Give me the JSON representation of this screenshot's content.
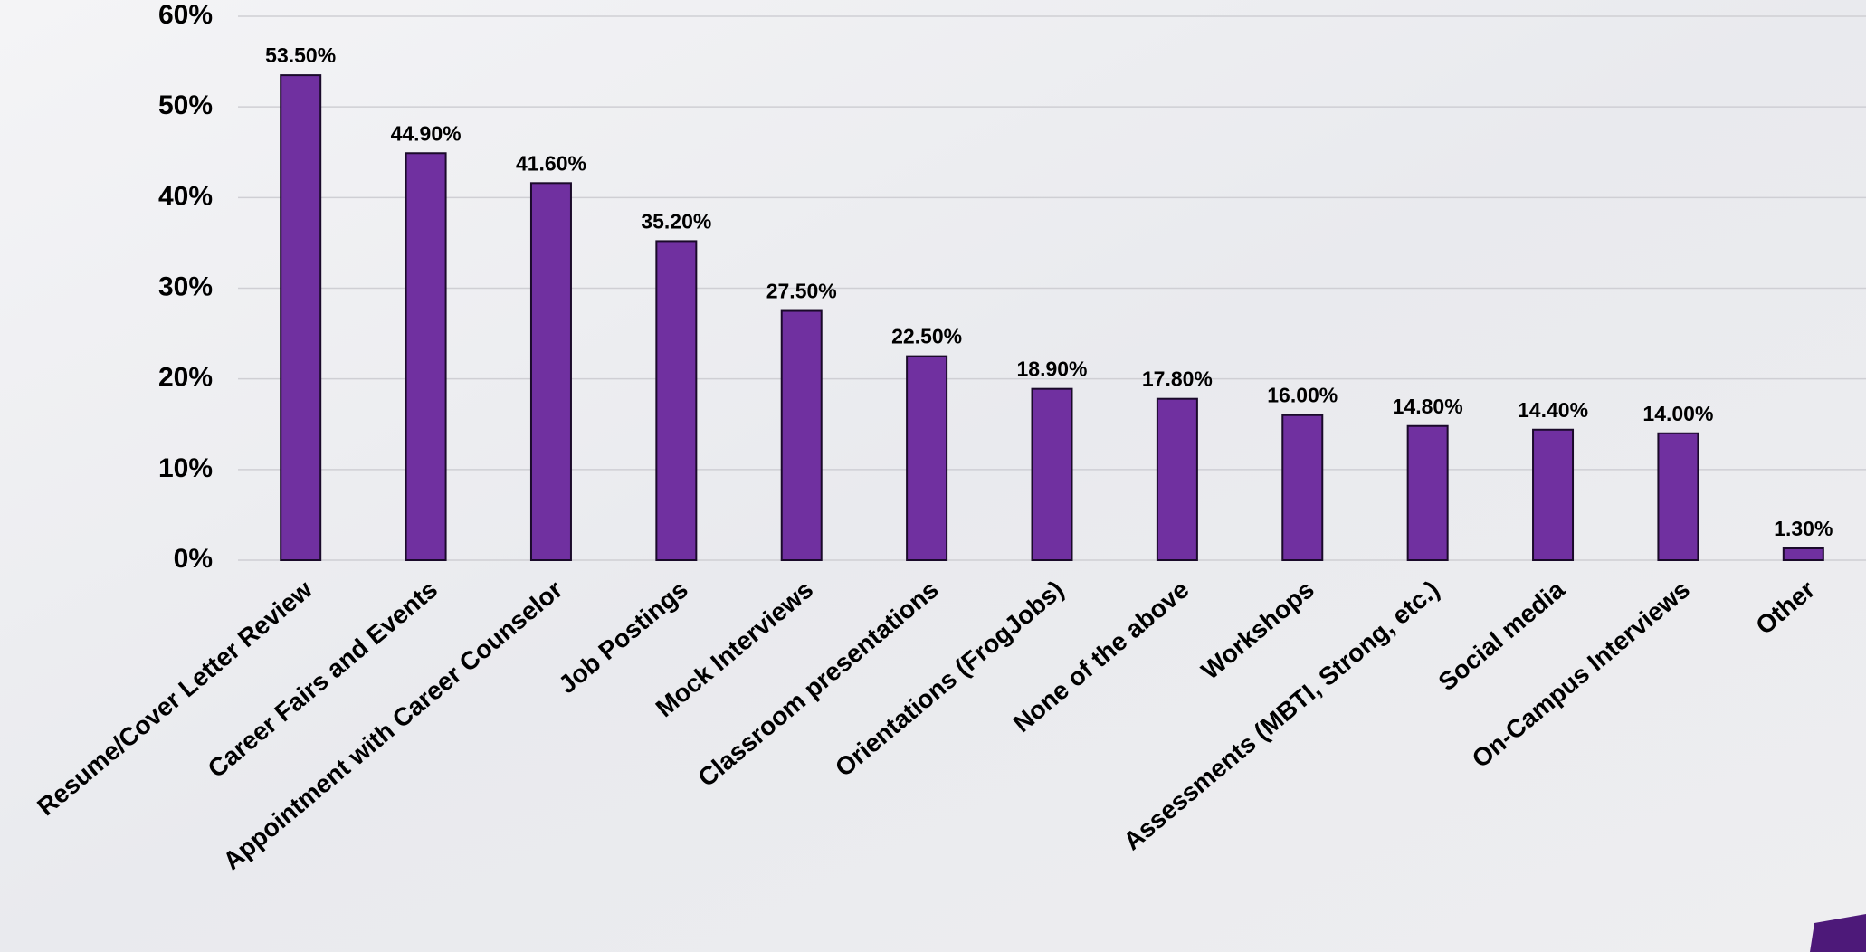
{
  "chart_data": {
    "type": "bar",
    "categories": [
      "Resume/Cover Letter Review",
      "Career Fairs and Events",
      "Appointment with Career Counselor",
      "Job Postings",
      "Mock Interviews",
      "Classroom presentations",
      "Orientations (FrogJobs)",
      "None of the above",
      "Workshops",
      "Assessments (MBTI, Strong, etc.)",
      "Social media",
      "On-Campus Interviews",
      "Other"
    ],
    "values": [
      53.5,
      44.9,
      41.6,
      35.2,
      27.5,
      22.5,
      18.9,
      17.8,
      16.0,
      14.8,
      14.4,
      14.0,
      1.3
    ],
    "value_labels": [
      "53.50%",
      "44.90%",
      "41.60%",
      "35.20%",
      "27.50%",
      "22.50%",
      "18.90%",
      "17.80%",
      "16.00%",
      "14.80%",
      "14.40%",
      "14.00%",
      "1.30%"
    ],
    "color": "#7030a0",
    "ylim": [
      0,
      60
    ],
    "yticks": [
      {
        "value": 0,
        "label": "0%"
      },
      {
        "value": 10,
        "label": "10%"
      },
      {
        "value": 20,
        "label": "20%"
      },
      {
        "value": 30,
        "label": "30%"
      },
      {
        "value": 40,
        "label": "40%"
      },
      {
        "value": 50,
        "label": "50%"
      },
      {
        "value": 60,
        "label": "60%"
      }
    ],
    "grid": true
  }
}
